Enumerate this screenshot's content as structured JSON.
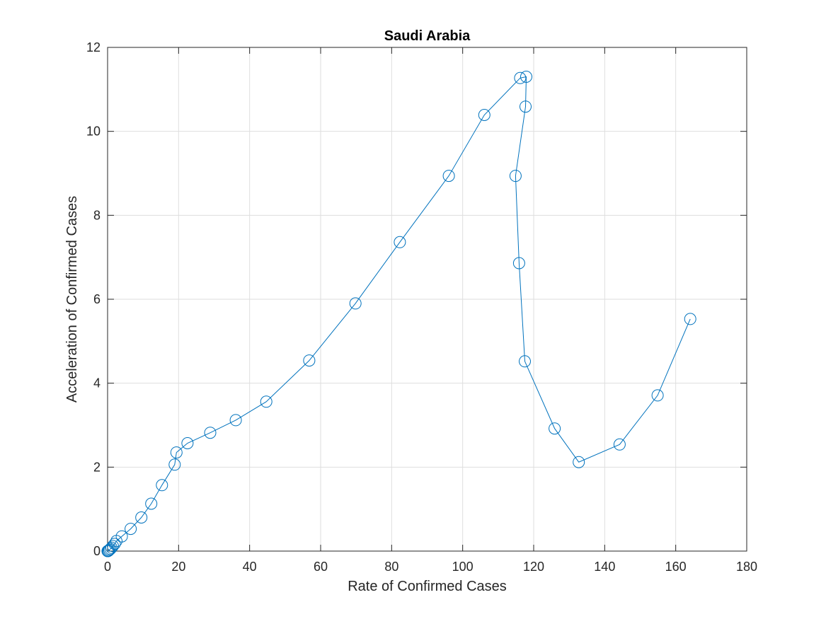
{
  "chart_data": {
    "type": "line",
    "title": "Saudi Arabia",
    "xlabel": "Rate of Confirmed Cases",
    "ylabel": "Acceleration of Confirmed Cases",
    "xlim": [
      0,
      180
    ],
    "ylim": [
      0,
      12
    ],
    "xticks": [
      0,
      20,
      40,
      60,
      80,
      100,
      120,
      140,
      160,
      180
    ],
    "yticks": [
      0,
      2,
      4,
      6,
      8,
      10,
      12
    ],
    "grid": true,
    "marker": "circle",
    "color": "#0072BD",
    "series": [
      {
        "points": [
          [
            0.0,
            0.0
          ],
          [
            0.1,
            0.0
          ],
          [
            0.3,
            0.01
          ],
          [
            0.5,
            0.03
          ],
          [
            0.8,
            0.05
          ],
          [
            1.1,
            0.08
          ],
          [
            1.5,
            0.12
          ],
          [
            2.0,
            0.17
          ],
          [
            2.5,
            0.24
          ],
          [
            4.0,
            0.35
          ],
          [
            6.5,
            0.53
          ],
          [
            9.5,
            0.8
          ],
          [
            12.3,
            1.13
          ],
          [
            15.3,
            1.57
          ],
          [
            18.9,
            2.06
          ],
          [
            19.4,
            2.35
          ],
          [
            22.5,
            2.57
          ],
          [
            28.9,
            2.82
          ],
          [
            36.1,
            3.12
          ],
          [
            44.7,
            3.56
          ],
          [
            56.8,
            4.54
          ],
          [
            69.8,
            5.9
          ],
          [
            82.3,
            7.36
          ],
          [
            96.1,
            8.94
          ],
          [
            106.1,
            10.39
          ],
          [
            116.2,
            11.27
          ],
          [
            117.9,
            11.3
          ],
          [
            117.7,
            10.59
          ],
          [
            114.9,
            8.94
          ],
          [
            115.9,
            6.86
          ],
          [
            117.5,
            4.52
          ],
          [
            125.9,
            2.92
          ],
          [
            132.7,
            2.12
          ],
          [
            144.2,
            2.54
          ],
          [
            154.9,
            3.71
          ],
          [
            164.1,
            5.53
          ]
        ]
      }
    ]
  }
}
